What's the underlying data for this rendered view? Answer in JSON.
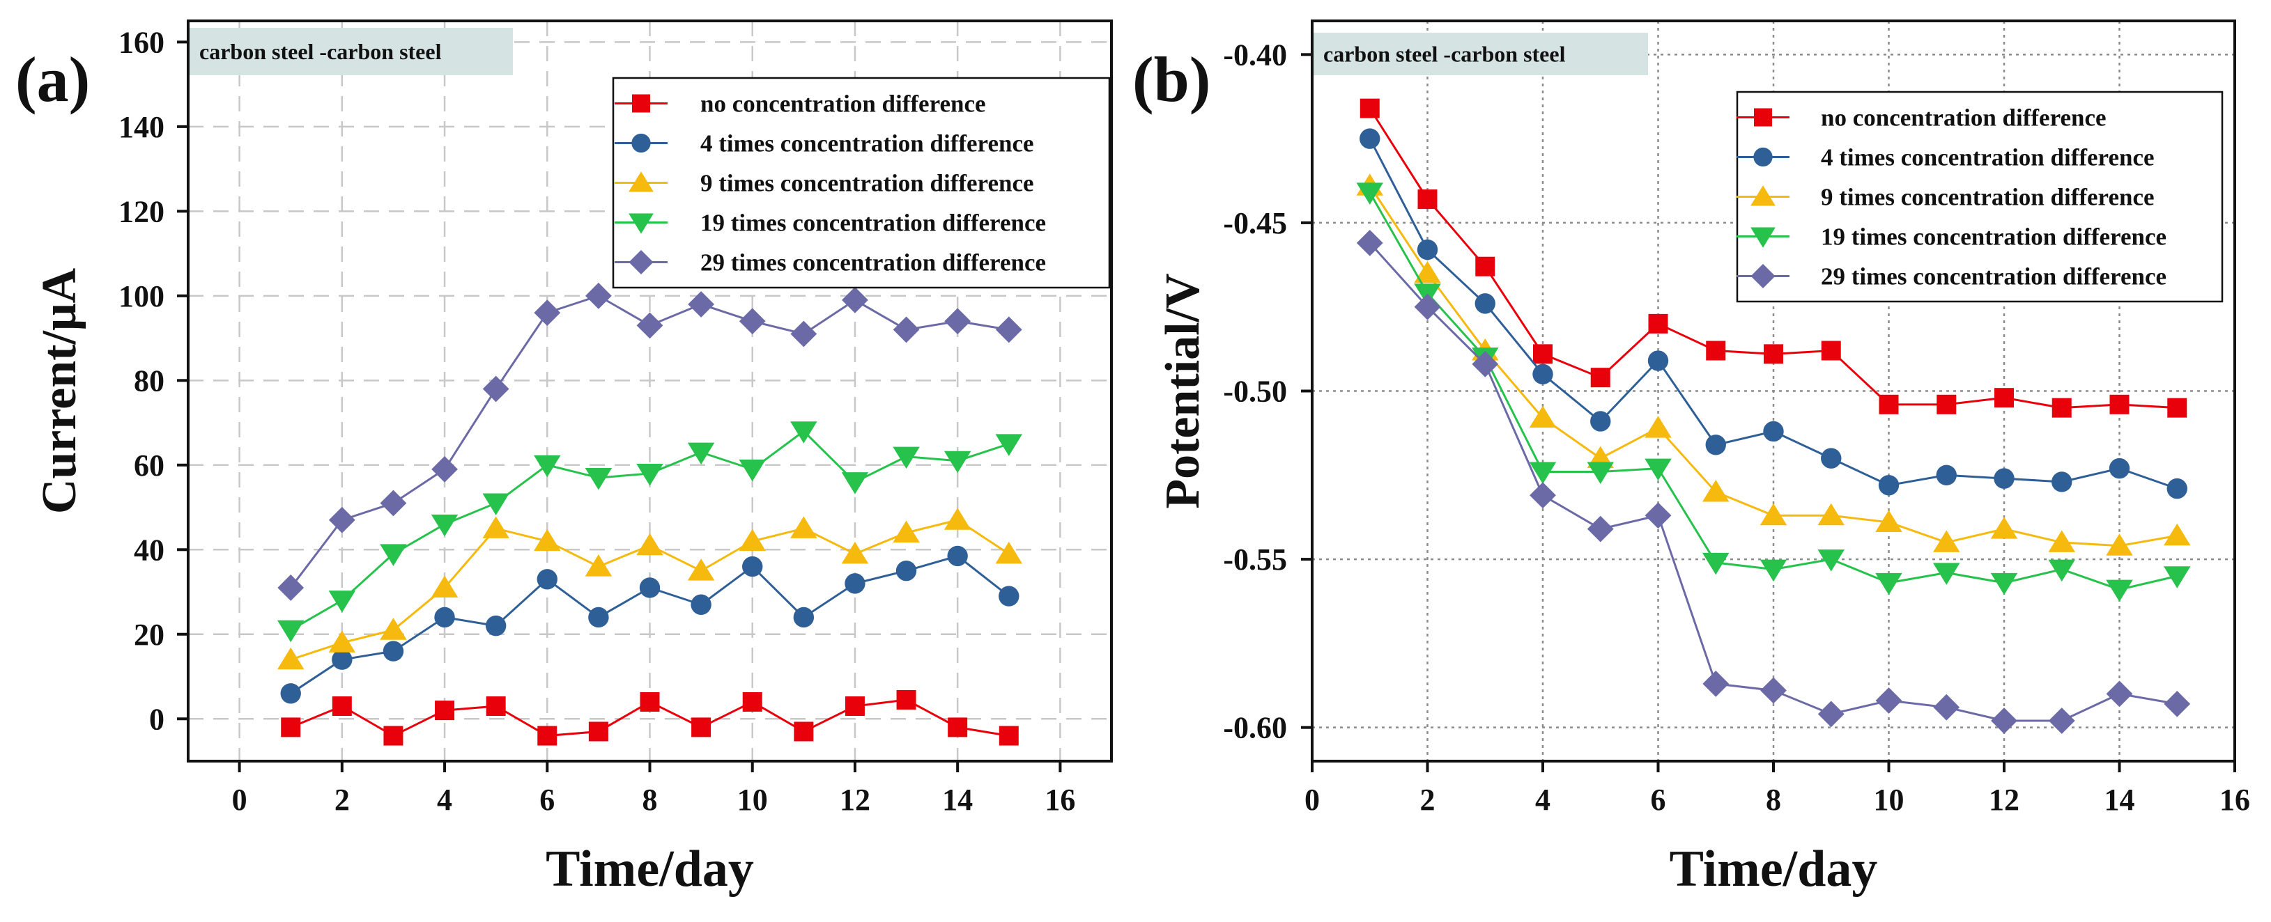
{
  "chart_data": [
    {
      "type": "line",
      "panel_label": "(a)",
      "annotation": "carbon steel -carbon steel",
      "xlabel": "Time/day",
      "ylabel": "Current/μA",
      "xlim": [
        -1,
        17
      ],
      "ylim": [
        -10,
        165
      ],
      "xticks": [
        0,
        2,
        4,
        6,
        8,
        10,
        12,
        14,
        16
      ],
      "yticks": [
        0,
        20,
        40,
        60,
        80,
        100,
        120,
        140,
        160
      ],
      "grid": true,
      "legend_position": "top-right",
      "x": [
        1,
        2,
        3,
        4,
        5,
        6,
        7,
        8,
        9,
        10,
        11,
        12,
        13,
        14,
        15
      ],
      "series": [
        {
          "name": "no concentration difference",
          "color": "#e8000b",
          "marker": "square",
          "values": [
            -2,
            3,
            -4,
            2,
            3,
            -4,
            -3,
            4,
            -2,
            4,
            -3,
            3,
            4.5,
            -2,
            -4
          ]
        },
        {
          "name": "4 times concentration difference",
          "color": "#2f5f97",
          "marker": "circle",
          "values": [
            6,
            14,
            16,
            24,
            22,
            33,
            24,
            31,
            27,
            36,
            24,
            32,
            35,
            38.5,
            29
          ]
        },
        {
          "name": "9 times concentration difference",
          "color": "#f6b90e",
          "marker": "triangle-up",
          "values": [
            14,
            18,
            21,
            31,
            45,
            42,
            36,
            41,
            35,
            42,
            45,
            39,
            44,
            47,
            39
          ]
        },
        {
          "name": "19 times concentration difference",
          "color": "#27c24c",
          "marker": "triangle-down",
          "values": [
            21,
            28,
            39,
            46,
            51,
            60,
            57,
            58,
            63,
            59,
            68,
            56,
            62,
            61,
            65
          ]
        },
        {
          "name": "29 times concentration difference",
          "color": "#6b6aa6",
          "marker": "diamond",
          "values": [
            31,
            47,
            51,
            59,
            78,
            96,
            100,
            93,
            98,
            94,
            91,
            99,
            92,
            94,
            92
          ]
        }
      ]
    },
    {
      "type": "line",
      "panel_label": "(b)",
      "annotation": "carbon steel -carbon steel",
      "xlabel": "Time/day",
      "ylabel": "Potential/V",
      "xlim": [
        0,
        16
      ],
      "ylim": [
        -0.61,
        -0.39
      ],
      "xticks": [
        0,
        2,
        4,
        6,
        8,
        10,
        12,
        14,
        16
      ],
      "yticks": [
        -0.6,
        -0.55,
        -0.5,
        -0.45,
        -0.4
      ],
      "ytick_labels": [
        "-0.60",
        "-0.55",
        "-0.50",
        "-0.45",
        "-0.40"
      ],
      "grid": true,
      "legend_position": "top-right",
      "x": [
        1,
        2,
        3,
        4,
        5,
        6,
        7,
        8,
        9,
        10,
        11,
        12,
        13,
        14,
        15
      ],
      "series": [
        {
          "name": "no concentration difference",
          "color": "#e8000b",
          "marker": "square",
          "values": [
            -0.416,
            -0.443,
            -0.463,
            -0.489,
            -0.496,
            -0.48,
            -0.488,
            -0.489,
            -0.488,
            -0.504,
            -0.504,
            -0.502,
            -0.505,
            -0.504,
            -0.505
          ]
        },
        {
          "name": "4 times concentration difference",
          "color": "#2f5f97",
          "marker": "circle",
          "values": [
            -0.425,
            -0.458,
            -0.474,
            -0.495,
            -0.509,
            -0.491,
            -0.516,
            -0.512,
            -0.52,
            -0.528,
            -0.525,
            -0.526,
            -0.527,
            -0.523,
            -0.529
          ]
        },
        {
          "name": "9 times concentration difference",
          "color": "#f6b90e",
          "marker": "triangle-up",
          "values": [
            -0.439,
            -0.465,
            -0.488,
            -0.508,
            -0.52,
            -0.511,
            -0.53,
            -0.537,
            -0.537,
            -0.539,
            -0.545,
            -0.541,
            -0.545,
            -0.546,
            -0.543
          ]
        },
        {
          "name": "19 times concentration difference",
          "color": "#27c24c",
          "marker": "triangle-down",
          "values": [
            -0.441,
            -0.471,
            -0.49,
            -0.524,
            -0.524,
            -0.523,
            -0.551,
            -0.553,
            -0.55,
            -0.557,
            -0.554,
            -0.557,
            -0.553,
            -0.559,
            -0.555
          ]
        },
        {
          "name": "29 times concentration difference",
          "color": "#6b6aa6",
          "marker": "diamond",
          "values": [
            -0.456,
            -0.475,
            -0.492,
            -0.531,
            -0.541,
            -0.537,
            -0.587,
            -0.589,
            -0.596,
            -0.592,
            -0.594,
            -0.598,
            -0.598,
            -0.59,
            -0.593
          ]
        }
      ]
    }
  ]
}
